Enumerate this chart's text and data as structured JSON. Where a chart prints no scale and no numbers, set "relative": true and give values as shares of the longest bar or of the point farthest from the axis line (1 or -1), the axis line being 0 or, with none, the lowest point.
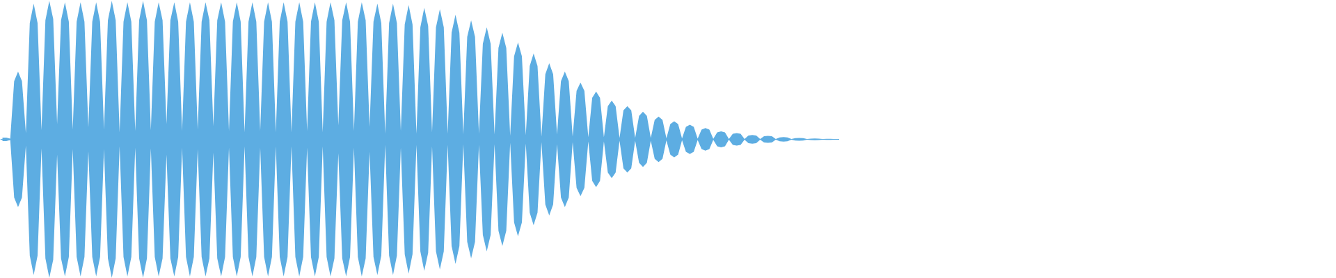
{
  "chart_data": {
    "type": "area",
    "relative": true,
    "categories": [
      null,
      null,
      null,
      null,
      null,
      null,
      null,
      null,
      null,
      null,
      null,
      null,
      null,
      null,
      null,
      null,
      null,
      null,
      null,
      null,
      null,
      null,
      null,
      null,
      null,
      null,
      null,
      null,
      null,
      null,
      null,
      null,
      null,
      null,
      null,
      null,
      null,
      null,
      null,
      null,
      null,
      null,
      null,
      null,
      null,
      null,
      null,
      null,
      null,
      null,
      null,
      null,
      null,
      null,
      null,
      null,
      null,
      null,
      null,
      null,
      null,
      null,
      null,
      null,
      null,
      null,
      null,
      null,
      null,
      null,
      null,
      null,
      null,
      null,
      null,
      null,
      null,
      null,
      null,
      null,
      null,
      null,
      null,
      null,
      null,
      null,
      null,
      null,
      null,
      null,
      null,
      null,
      null,
      null,
      null,
      null,
      null,
      null,
      null,
      null,
      null,
      null,
      null,
      null,
      null,
      null,
      null,
      null,
      null,
      null,
      null,
      null,
      null,
      null,
      null,
      null,
      null,
      null,
      null,
      null,
      null,
      null,
      null,
      null,
      null,
      null,
      null,
      null,
      null,
      null,
      null,
      null,
      null,
      null,
      null,
      null,
      null,
      null,
      null,
      null,
      null,
      null,
      null,
      null,
      null,
      null,
      null,
      null,
      null,
      null,
      null,
      null,
      null,
      null,
      null,
      null,
      null,
      null,
      null,
      null,
      null,
      null,
      null,
      null,
      null,
      null,
      null,
      null,
      null,
      null,
      null,
      null,
      null,
      null,
      null,
      null,
      null,
      null,
      null,
      null,
      null,
      null,
      null,
      null,
      null,
      null,
      null,
      null,
      null,
      null,
      null,
      null,
      null,
      null,
      null,
      null,
      null,
      null,
      null,
      null,
      null,
      null,
      null,
      null,
      null,
      null,
      null,
      null,
      null,
      null,
      null,
      null,
      null,
      null,
      null
    ],
    "series": [
      {
        "color": "#5dade2",
        "values": [
          0.013,
          0.012,
          0.005,
          0.42,
          0.49,
          0.42,
          0.045,
          0.84,
          0.98,
          0.84,
          0.065,
          0.86,
          1.0,
          0.87,
          0.11,
          0.86,
          0.99,
          0.85,
          0.07,
          0.85,
          0.99,
          0.85,
          0.085,
          0.85,
          0.99,
          0.85,
          0.07,
          0.86,
          1.0,
          0.86,
          0.05,
          0.85,
          0.99,
          0.85,
          0.06,
          0.86,
          1.0,
          0.86,
          0.065,
          0.85,
          0.99,
          0.86,
          0.11,
          0.86,
          0.99,
          0.85,
          0.06,
          0.85,
          0.99,
          0.85,
          0.07,
          0.85,
          0.99,
          0.86,
          0.095,
          0.86,
          0.99,
          0.85,
          0.06,
          0.85,
          0.99,
          0.85,
          0.05,
          0.85,
          0.99,
          0.85,
          0.06,
          0.85,
          0.99,
          0.85,
          0.05,
          0.85,
          0.99,
          0.85,
          0.05,
          0.85,
          0.99,
          0.85,
          0.06,
          0.85,
          0.99,
          0.85,
          0.05,
          0.85,
          0.99,
          0.86,
          0.1,
          0.86,
          0.99,
          0.85,
          0.06,
          0.85,
          0.99,
          0.86,
          0.09,
          0.85,
          0.98,
          0.84,
          0.04,
          0.84,
          0.98,
          0.84,
          0.06,
          0.83,
          0.97,
          0.83,
          0.04,
          0.81,
          0.95,
          0.82,
          0.05,
          0.81,
          0.94,
          0.81,
          0.04,
          0.77,
          0.9,
          0.77,
          0.035,
          0.74,
          0.86,
          0.74,
          0.04,
          0.69,
          0.81,
          0.69,
          0.035,
          0.66,
          0.77,
          0.66,
          0.025,
          0.6,
          0.7,
          0.6,
          0.03,
          0.53,
          0.62,
          0.53,
          0.02,
          0.47,
          0.55,
          0.47,
          0.035,
          0.42,
          0.49,
          0.42,
          0.02,
          0.35,
          0.41,
          0.35,
          0.015,
          0.3,
          0.345,
          0.3,
          0.015,
          0.24,
          0.28,
          0.24,
          0.01,
          0.21,
          0.24,
          0.21,
          0.01,
          0.17,
          0.2,
          0.17,
          0.01,
          0.14,
          0.165,
          0.14,
          0.008,
          0.11,
          0.13,
          0.11,
          0.006,
          0.09,
          0.105,
          0.09,
          0.005,
          0.07,
          0.082,
          0.07,
          0.004,
          0.05,
          0.058,
          0.05,
          0.003,
          0.04,
          0.045,
          0.04,
          0.003,
          0.028,
          0.032,
          0.028,
          0.002,
          0.022,
          0.025,
          0.022,
          0.002,
          0.014,
          0.016,
          0.014,
          0.002,
          0.009,
          0.01,
          0.009,
          0.002,
          0.005,
          0.006,
          0.005,
          0.002,
          0.004,
          0.004,
          0.003,
          0.0
        ]
      },
      {
        "color": "#5dade2",
        "values": [
          -0.013,
          -0.012,
          -0.005,
          -0.42,
          -0.49,
          -0.42,
          -0.045,
          -0.84,
          -0.98,
          -0.84,
          -0.065,
          -0.86,
          -1.0,
          -0.87,
          -0.11,
          -0.86,
          -0.99,
          -0.85,
          -0.07,
          -0.85,
          -0.99,
          -0.85,
          -0.085,
          -0.85,
          -0.99,
          -0.85,
          -0.07,
          -0.86,
          -1.0,
          -0.86,
          -0.05,
          -0.85,
          -0.99,
          -0.85,
          -0.06,
          -0.86,
          -1.0,
          -0.86,
          -0.065,
          -0.85,
          -0.99,
          -0.86,
          -0.11,
          -0.86,
          -0.99,
          -0.85,
          -0.06,
          -0.85,
          -0.99,
          -0.85,
          -0.07,
          -0.85,
          -0.99,
          -0.86,
          -0.095,
          -0.86,
          -0.99,
          -0.85,
          -0.06,
          -0.85,
          -0.99,
          -0.85,
          -0.05,
          -0.85,
          -0.99,
          -0.85,
          -0.06,
          -0.85,
          -0.99,
          -0.85,
          -0.05,
          -0.85,
          -0.99,
          -0.85,
          -0.05,
          -0.85,
          -0.99,
          -0.85,
          -0.06,
          -0.85,
          -0.99,
          -0.85,
          -0.05,
          -0.85,
          -0.99,
          -0.86,
          -0.1,
          -0.86,
          -0.99,
          -0.85,
          -0.06,
          -0.85,
          -0.99,
          -0.86,
          -0.09,
          -0.85,
          -0.98,
          -0.84,
          -0.04,
          -0.84,
          -0.98,
          -0.84,
          -0.06,
          -0.83,
          -0.97,
          -0.83,
          -0.04,
          -0.81,
          -0.95,
          -0.82,
          -0.05,
          -0.81,
          -0.94,
          -0.81,
          -0.04,
          -0.77,
          -0.9,
          -0.77,
          -0.035,
          -0.74,
          -0.86,
          -0.74,
          -0.04,
          -0.69,
          -0.81,
          -0.69,
          -0.035,
          -0.66,
          -0.77,
          -0.66,
          -0.025,
          -0.6,
          -0.7,
          -0.6,
          -0.03,
          -0.53,
          -0.62,
          -0.53,
          -0.02,
          -0.47,
          -0.55,
          -0.47,
          -0.035,
          -0.42,
          -0.49,
          -0.42,
          -0.02,
          -0.35,
          -0.41,
          -0.35,
          -0.015,
          -0.3,
          -0.345,
          -0.3,
          -0.015,
          -0.24,
          -0.28,
          -0.24,
          -0.01,
          -0.21,
          -0.24,
          -0.21,
          -0.01,
          -0.17,
          -0.2,
          -0.17,
          -0.01,
          -0.14,
          -0.165,
          -0.14,
          -0.008,
          -0.11,
          -0.13,
          -0.11,
          -0.006,
          -0.09,
          -0.105,
          -0.09,
          -0.005,
          -0.07,
          -0.082,
          -0.07,
          -0.004,
          -0.05,
          -0.058,
          -0.05,
          -0.003,
          -0.04,
          -0.045,
          -0.04,
          -0.003,
          -0.028,
          -0.032,
          -0.028,
          -0.002,
          -0.022,
          -0.025,
          -0.022,
          -0.002,
          -0.014,
          -0.016,
          -0.014,
          -0.002,
          -0.009,
          -0.01,
          -0.009,
          -0.002,
          -0.005,
          -0.006,
          -0.005,
          -0.002,
          -0.004,
          -0.004,
          -0.003,
          0.0
        ]
      }
    ]
  }
}
